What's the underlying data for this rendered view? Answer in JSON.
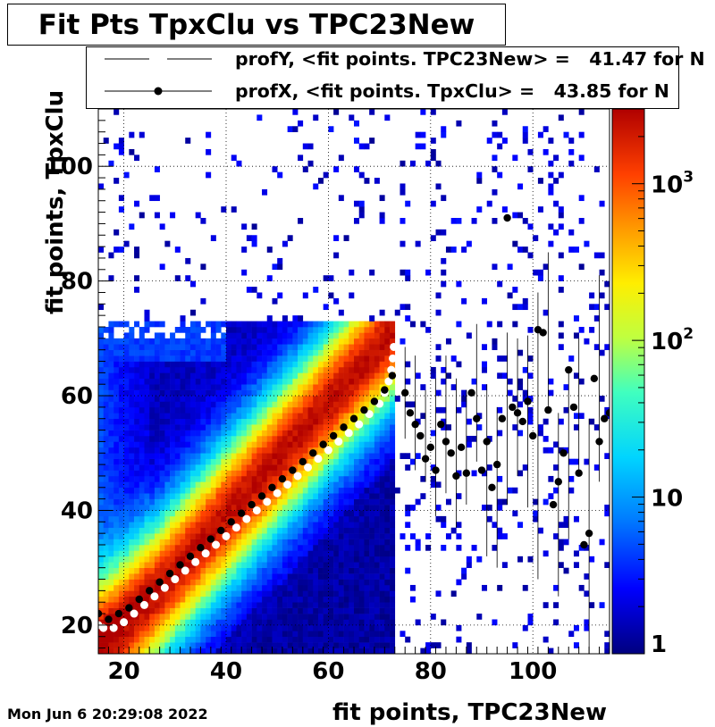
{
  "chart_data": {
    "type": "heatmap",
    "title": "Fit Pts TpxClu vs TPC23New",
    "xlabel": "fit points, TPC23New",
    "ylabel": "fit points, TpxClu",
    "xlim": [
      15,
      115
    ],
    "ylim": [
      15,
      110
    ],
    "x_ticks": [
      20,
      40,
      60,
      80,
      100
    ],
    "y_ticks": [
      20,
      40,
      60,
      80,
      100
    ],
    "grid": true,
    "colorbar": {
      "scale": "log",
      "range": [
        1,
        3000
      ],
      "tick_labels": [
        {
          "value": 1,
          "label": "1"
        },
        {
          "value": 10,
          "label": "10"
        },
        {
          "value": 100,
          "label": "10",
          "exponent": "2"
        },
        {
          "value": 1000,
          "label": "10",
          "exponent": "3"
        }
      ]
    },
    "legend": {
      "placement": "top",
      "entries": [
        {
          "text": "profY, <fit points. TPC23New> =   41.47 for N",
          "marker": "open-circle",
          "color": "#ffffff"
        },
        {
          "text": "profX, <fit points. TpxClu> =   43.85 for N",
          "marker": "filled-circle",
          "color": "#000000"
        }
      ]
    },
    "series": [
      {
        "name": "profX",
        "marker": "filled-circle",
        "color": "#000000",
        "points": [
          [
            15,
            22
          ],
          [
            17,
            21
          ],
          [
            19,
            22
          ],
          [
            21,
            23
          ],
          [
            23,
            24.5
          ],
          [
            25,
            26
          ],
          [
            27,
            27.5
          ],
          [
            29,
            29
          ],
          [
            31,
            30.5
          ],
          [
            33,
            32
          ],
          [
            35,
            33.5
          ],
          [
            37,
            35
          ],
          [
            39,
            36.5
          ],
          [
            41,
            38
          ],
          [
            43,
            39.5
          ],
          [
            45,
            41
          ],
          [
            47,
            42.5
          ],
          [
            49,
            44
          ],
          [
            51,
            45.5
          ],
          [
            53,
            47
          ],
          [
            55,
            48.5
          ],
          [
            57,
            50
          ],
          [
            59,
            51.5
          ],
          [
            61,
            53
          ],
          [
            63,
            54.5
          ],
          [
            65,
            56
          ],
          [
            67,
            57.5
          ],
          [
            69,
            59
          ],
          [
            71,
            61
          ],
          [
            72.5,
            63.5
          ],
          [
            75,
            60.5
          ],
          [
            76,
            57
          ],
          [
            77,
            55
          ],
          [
            78,
            53
          ],
          [
            79,
            49
          ],
          [
            80,
            51
          ],
          [
            81,
            47
          ],
          [
            82,
            55
          ],
          [
            83,
            52
          ],
          [
            84,
            50
          ],
          [
            85,
            46
          ],
          [
            86,
            51
          ],
          [
            87,
            46.5
          ],
          [
            88,
            60.5
          ],
          [
            89,
            56
          ],
          [
            90,
            47
          ],
          [
            91,
            52
          ],
          [
            92,
            44
          ],
          [
            93,
            48
          ],
          [
            94,
            56
          ],
          [
            95,
            91
          ],
          [
            96,
            58
          ],
          [
            97,
            57
          ],
          [
            98,
            55.5
          ],
          [
            99,
            59
          ],
          [
            100,
            53
          ],
          [
            101,
            71.5
          ],
          [
            102,
            71
          ],
          [
            103,
            57.5
          ],
          [
            104,
            41
          ],
          [
            105,
            45
          ],
          [
            106,
            50
          ],
          [
            107,
            64.5
          ],
          [
            108,
            58
          ],
          [
            109,
            46.5
          ],
          [
            110,
            34
          ],
          [
            111,
            36
          ],
          [
            112,
            63
          ],
          [
            113,
            52
          ],
          [
            114,
            56
          ],
          [
            115,
            57
          ]
        ],
        "errors_y": [
          [
            75,
            8
          ],
          [
            77,
            10
          ],
          [
            79,
            8
          ],
          [
            81,
            12
          ],
          [
            83,
            12
          ],
          [
            85,
            13
          ],
          [
            87,
            10
          ],
          [
            89,
            12
          ],
          [
            91,
            15
          ],
          [
            93,
            14
          ],
          [
            95,
            15
          ],
          [
            97,
            12
          ],
          [
            99,
            15
          ],
          [
            101,
            25
          ],
          [
            103,
            14
          ],
          [
            105,
            16
          ],
          [
            107,
            15
          ],
          [
            109,
            12
          ],
          [
            111,
            22
          ],
          [
            113,
            18
          ]
        ]
      },
      {
        "name": "profY",
        "marker": "open-circle",
        "color": "#ffffff",
        "points": [
          [
            15,
            20
          ],
          [
            16,
            19.5
          ],
          [
            18,
            19.5
          ],
          [
            20,
            20.5
          ],
          [
            22,
            22
          ],
          [
            24,
            23.5
          ],
          [
            26,
            25
          ],
          [
            28,
            26.5
          ],
          [
            30,
            28
          ],
          [
            32,
            29.5
          ],
          [
            34,
            31
          ],
          [
            36,
            32.5
          ],
          [
            38,
            34
          ],
          [
            40,
            35.5
          ],
          [
            42,
            37
          ],
          [
            44,
            38.5
          ],
          [
            46,
            40
          ],
          [
            48,
            41.5
          ],
          [
            50,
            43
          ],
          [
            52,
            44.5
          ],
          [
            54,
            46
          ],
          [
            56,
            47.5
          ],
          [
            58,
            49
          ],
          [
            60,
            50.5
          ],
          [
            62,
            52
          ],
          [
            64,
            53.5
          ],
          [
            66,
            55
          ],
          [
            68,
            56.8
          ],
          [
            70,
            58.6
          ],
          [
            71,
            60.5
          ],
          [
            71.8,
            62.5
          ],
          [
            72.3,
            64.5
          ],
          [
            72.6,
            66.5
          ],
          [
            72.8,
            68.5
          ]
        ]
      }
    ],
    "timestamp": "Mon Jun  6 20:29:08 2022"
  }
}
